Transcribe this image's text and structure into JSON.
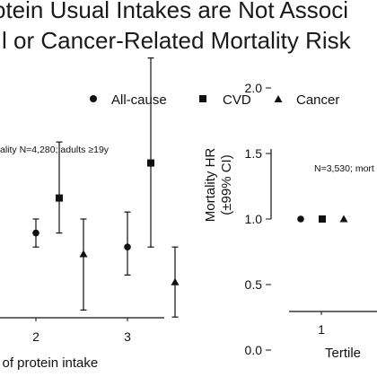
{
  "title": {
    "line1": "otein Usual Intakes are Not Associ",
    "line2": "l or Cancer-Related Mortality Risk"
  },
  "legend": [
    {
      "label": "All-cause",
      "marker": "circle"
    },
    {
      "label": "CVD",
      "marker": "square"
    },
    {
      "label": "Cancer",
      "marker": "triangle"
    }
  ],
  "left_panel": {
    "note": "ality N=4,280; adults ≥19y",
    "x_title": "e of protein intake",
    "x_tick_labels": [
      "2",
      "3"
    ]
  },
  "right_panel": {
    "note": "N=3,530; mort",
    "y_title_line1": "Mortality HR",
    "y_title_line2": "(±99% CI)",
    "y_tick_labels": [
      "0.0",
      "0.5",
      "1.0",
      "1.5",
      "2.0"
    ],
    "x_tick_labels": [
      "1"
    ],
    "x_title": "Tertile"
  },
  "chart_data": [
    {
      "type": "scatter",
      "title": "",
      "xlabel": "e of protein intake",
      "ylabel": "",
      "categories": [
        "2",
        "3"
      ],
      "series": [
        {
          "name": "All-cause",
          "marker": "circle",
          "color": "#111111",
          "x": [
            2,
            3
          ],
          "y": [
            0.9,
            0.8
          ],
          "ci_low": [
            0.8,
            0.6
          ],
          "ci_high": [
            1.0,
            1.05
          ]
        },
        {
          "name": "CVD",
          "marker": "square",
          "color": "#111111",
          "x": [
            2,
            3
          ],
          "y": [
            1.15,
            1.4
          ],
          "ci_low": [
            0.9,
            0.8
          ],
          "ci_high": [
            1.55,
            2.15
          ]
        },
        {
          "name": "Cancer",
          "marker": "triangle",
          "color": "#111111",
          "x": [
            2,
            3
          ],
          "y": [
            0.75,
            0.55
          ],
          "ci_low": [
            0.35,
            0.3
          ],
          "ci_high": [
            1.0,
            0.8
          ]
        }
      ]
    },
    {
      "type": "scatter",
      "title": "",
      "xlabel": "Tertile",
      "ylabel": "Mortality HR (±99% CI)",
      "ylim": [
        0,
        2.0
      ],
      "categories": [
        "1"
      ],
      "series": [
        {
          "name": "All-cause",
          "marker": "circle",
          "color": "#111111",
          "x": [
            1
          ],
          "y": [
            1.0
          ]
        },
        {
          "name": "CVD",
          "marker": "square",
          "color": "#111111",
          "x": [
            1
          ],
          "y": [
            1.0
          ]
        },
        {
          "name": "Cancer",
          "marker": "triangle",
          "color": "#111111",
          "x": [
            1
          ],
          "y": [
            1.0
          ]
        }
      ]
    }
  ]
}
